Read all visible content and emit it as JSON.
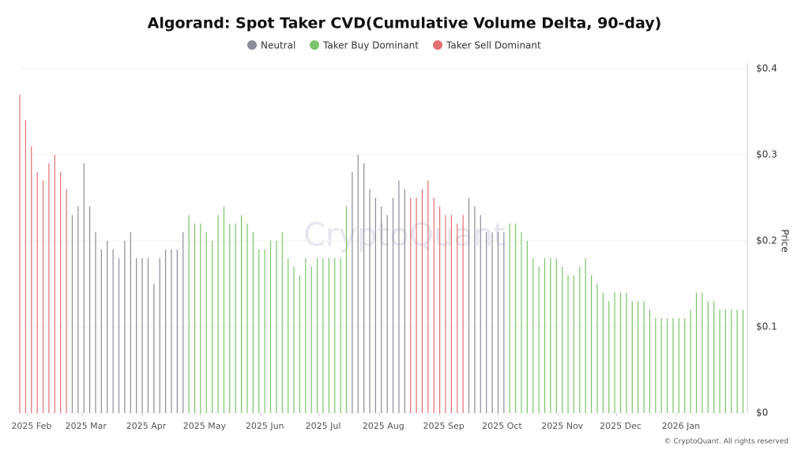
{
  "chart_data": {
    "type": "bar",
    "title": "Algorand: Spot Taker CVD(Cumulative Volume Delta, 90-day)",
    "y_axis_label": "Price",
    "watermark": "CryptoQuant",
    "footer": "© CryptoQuant. All rights reserved",
    "xlim": [
      0,
      373
    ],
    "xticks": [
      {
        "value": 4,
        "label": "2025 Feb"
      },
      {
        "value": 32,
        "label": "2025 Mar"
      },
      {
        "value": 63,
        "label": "2025 Apr"
      },
      {
        "value": 93,
        "label": "2025 May"
      },
      {
        "value": 124,
        "label": "2025 Jun"
      },
      {
        "value": 154,
        "label": "2025 Jul"
      },
      {
        "value": 185,
        "label": "2025 Aug"
      },
      {
        "value": 216,
        "label": "2025 Sep"
      },
      {
        "value": 246,
        "label": "2025 Oct"
      },
      {
        "value": 277,
        "label": "2025 Nov"
      },
      {
        "value": 307,
        "label": "2025 Dec"
      },
      {
        "value": 338,
        "label": "2026 Jan"
      }
    ],
    "ylim": [
      0,
      0.4
    ],
    "yticks": [
      {
        "value": 0,
        "label": "$0"
      },
      {
        "value": 0.1,
        "label": "$0.1"
      },
      {
        "value": 0.2,
        "label": "$0.2"
      },
      {
        "value": 0.3,
        "label": "$0.3"
      },
      {
        "value": 0.4,
        "label": "$0.4"
      }
    ],
    "grid": true,
    "series": [
      {
        "name": "Neutral",
        "color": "#8c8c98",
        "x": [
          27,
          30,
          33,
          36,
          39,
          42,
          45,
          48,
          51,
          54,
          57,
          60,
          63,
          66,
          69,
          72,
          75,
          78,
          81,
          84,
          171,
          174,
          177,
          180,
          183,
          186,
          189,
          192,
          195,
          198,
          231,
          234,
          237,
          240,
          243,
          246,
          249
        ],
        "values": [
          0.23,
          0.24,
          0.29,
          0.24,
          0.21,
          0.19,
          0.2,
          0.19,
          0.18,
          0.2,
          0.21,
          0.18,
          0.18,
          0.18,
          0.15,
          0.18,
          0.19,
          0.19,
          0.19,
          0.21,
          0.28,
          0.3,
          0.29,
          0.26,
          0.25,
          0.24,
          0.23,
          0.25,
          0.27,
          0.26,
          0.25,
          0.24,
          0.23,
          0.21,
          0.21,
          0.21,
          0.21
        ]
      },
      {
        "name": "Taker Buy Dominant",
        "color": "#7cc46a",
        "x": [
          87,
          90,
          93,
          96,
          99,
          102,
          105,
          108,
          111,
          114,
          117,
          120,
          123,
          126,
          129,
          132,
          135,
          138,
          141,
          144,
          147,
          150,
          153,
          156,
          159,
          162,
          165,
          168,
          252,
          255,
          258,
          261,
          264,
          267,
          270,
          273,
          276,
          279,
          282,
          285,
          288,
          291,
          294,
          297,
          300,
          303,
          306,
          309,
          312,
          315,
          318,
          321,
          324,
          327,
          330,
          333,
          336,
          339,
          342,
          345,
          348,
          351,
          354,
          357,
          360,
          363,
          366,
          369,
          372
        ],
        "values": [
          0.23,
          0.22,
          0.22,
          0.21,
          0.2,
          0.23,
          0.24,
          0.22,
          0.22,
          0.23,
          0.22,
          0.21,
          0.19,
          0.19,
          0.2,
          0.2,
          0.21,
          0.18,
          0.17,
          0.16,
          0.18,
          0.17,
          0.18,
          0.18,
          0.18,
          0.18,
          0.18,
          0.24,
          0.22,
          0.22,
          0.21,
          0.2,
          0.18,
          0.17,
          0.18,
          0.18,
          0.18,
          0.17,
          0.16,
          0.16,
          0.17,
          0.18,
          0.16,
          0.15,
          0.14,
          0.13,
          0.14,
          0.14,
          0.14,
          0.13,
          0.13,
          0.13,
          0.12,
          0.11,
          0.11,
          0.11,
          0.11,
          0.11,
          0.11,
          0.12,
          0.14,
          0.14,
          0.13,
          0.13,
          0.12,
          0.12,
          0.12,
          0.12,
          0.12
        ]
      },
      {
        "name": "Taker Sell Dominant",
        "color": "#e36f6f",
        "x": [
          0,
          3,
          6,
          9,
          12,
          15,
          18,
          21,
          24,
          201,
          204,
          207,
          210,
          213,
          216,
          219,
          222,
          225,
          228
        ],
        "values": [
          0.37,
          0.34,
          0.31,
          0.28,
          0.27,
          0.29,
          0.3,
          0.28,
          0.26,
          0.25,
          0.25,
          0.26,
          0.27,
          0.25,
          0.24,
          0.23,
          0.23,
          0.22,
          0.23
        ]
      }
    ]
  }
}
